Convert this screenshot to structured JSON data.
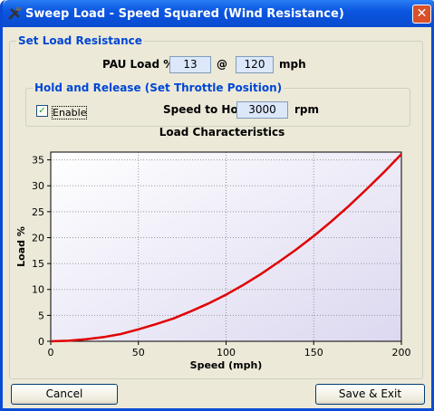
{
  "window": {
    "title": "Sweep Load - Speed Squared (Wind Resistance)"
  },
  "load_group": {
    "label": "Set Load Resistance",
    "pau_label": "PAU Load %",
    "pau_value": "13",
    "at": "@",
    "speed_value": "120",
    "speed_unit": "mph"
  },
  "hold_group": {
    "label": "Hold and Release (Set Throttle Position)",
    "enable": "Enable",
    "speed_label": "Speed to Hold",
    "speed_value": "3000",
    "speed_unit": "rpm"
  },
  "buttons": {
    "cancel": "Cancel",
    "save": "Save & Exit"
  },
  "chart_data": {
    "type": "line",
    "title": "Load Characteristics",
    "x_label": "Speed (mph)",
    "y_label": "Load %",
    "x": [
      0,
      10,
      20,
      30,
      40,
      50,
      60,
      70,
      80,
      90,
      100,
      110,
      120,
      130,
      140,
      150,
      160,
      170,
      180,
      190,
      200
    ],
    "series": [
      {
        "color": "#e00000",
        "values": [
          0,
          0.1,
          0.4,
          0.8,
          1.4,
          2.3,
          3.3,
          4.4,
          5.8,
          7.3,
          9.0,
          10.9,
          13,
          15.3,
          17.7,
          20.3,
          23.1,
          26.1,
          29.3,
          32.6,
          36.1
        ]
      }
    ],
    "xlim": [
      0,
      200
    ],
    "xticks": [
      0,
      50,
      100,
      150,
      200
    ],
    "ylim": [
      0,
      36.5
    ],
    "yticks": [
      0,
      5,
      10,
      15,
      20,
      25,
      30,
      35
    ],
    "grid": true
  }
}
